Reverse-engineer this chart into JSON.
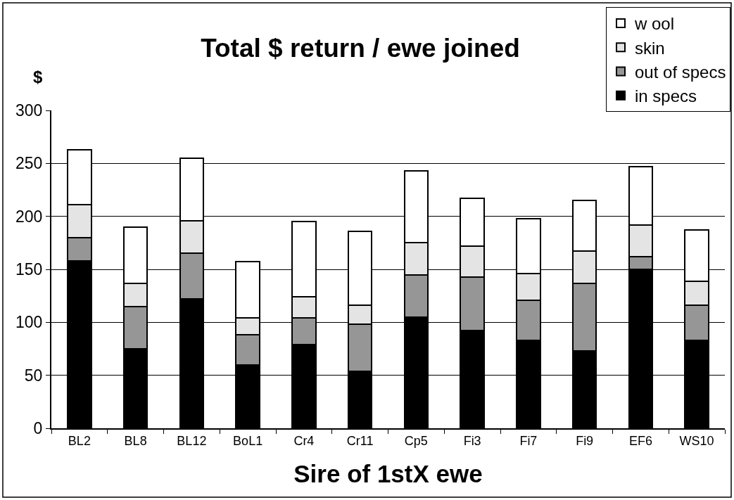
{
  "chart_data": {
    "type": "bar",
    "title": "Total $ return / ewe joined",
    "xlabel": "Sire of 1stX ewe",
    "ylabel": "$",
    "categories": [
      "BL2",
      "BL8",
      "BL12",
      "BoL1",
      "Cr4",
      "Cr11",
      "Cp5",
      "Fi3",
      "Fi7",
      "Fi9",
      "EF6",
      "WS10"
    ],
    "stacked": true,
    "series": [
      {
        "name": "in specs",
        "color": "#000000",
        "values": [
          158,
          75,
          122,
          60,
          79,
          54,
          105,
          92,
          83,
          73,
          150,
          83
        ]
      },
      {
        "name": "out of specs",
        "color": "#969696",
        "values": [
          22,
          40,
          43,
          28,
          25,
          44,
          40,
          51,
          38,
          64,
          12,
          33
        ]
      },
      {
        "name": "skin",
        "color": "#e4e4e4",
        "values": [
          31,
          22,
          31,
          16,
          20,
          18,
          30,
          29,
          25,
          30,
          30,
          23
        ]
      },
      {
        "name": "w ool",
        "color": "#ffffff",
        "values": [
          52,
          53,
          59,
          53,
          71,
          70,
          68,
          45,
          52,
          48,
          55,
          48
        ]
      }
    ],
    "ylim": [
      0,
      300
    ],
    "yticks": [
      0,
      50,
      100,
      150,
      200,
      250,
      300
    ],
    "grid": "y",
    "legend": "top right"
  }
}
